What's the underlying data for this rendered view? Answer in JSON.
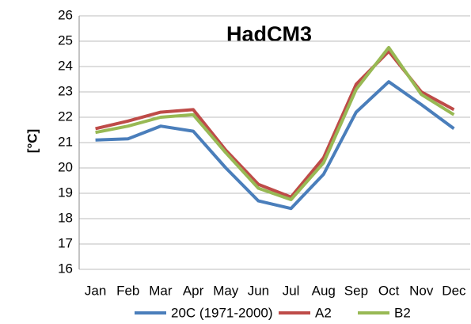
{
  "chart_data": {
    "type": "line",
    "title": "HadCM3",
    "y_label": "[°C]",
    "categories": [
      "Jan",
      "Feb",
      "Mar",
      "Apr",
      "May",
      "Jun",
      "Jul",
      "Aug",
      "Sep",
      "Oct",
      "Nov",
      "Dec"
    ],
    "series": [
      {
        "name": "20C (1971-2000)",
        "color": "#4a7ebb",
        "values": [
          21.1,
          21.15,
          21.65,
          21.45,
          20.0,
          18.7,
          18.4,
          19.75,
          22.2,
          23.4,
          22.5,
          21.55
        ]
      },
      {
        "name": "A2",
        "color": "#be4b48",
        "values": [
          21.55,
          21.85,
          22.2,
          22.3,
          20.7,
          19.35,
          18.85,
          20.4,
          23.3,
          24.6,
          23.0,
          22.3
        ]
      },
      {
        "name": "B2",
        "color": "#98b954",
        "values": [
          21.4,
          21.65,
          22.0,
          22.1,
          20.6,
          19.2,
          18.75,
          20.2,
          23.1,
          24.75,
          22.9,
          22.1
        ]
      }
    ],
    "ylim": [
      16,
      26
    ],
    "yticks": [
      16,
      17,
      18,
      19,
      20,
      21,
      22,
      23,
      24,
      25,
      26
    ],
    "grid": true,
    "legend": "bottom"
  }
}
